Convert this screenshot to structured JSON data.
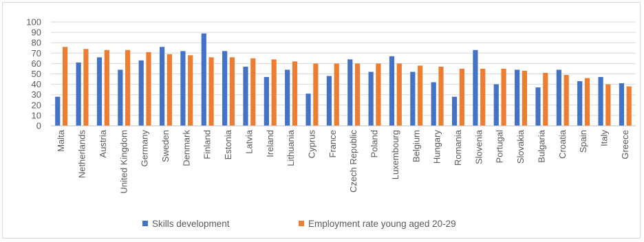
{
  "chart_data": {
    "type": "bar",
    "title": "",
    "xlabel": "",
    "ylabel": "",
    "ylim": [
      0,
      100
    ],
    "ytick_step": 10,
    "grid": true,
    "legend_position": "bottom",
    "categories": [
      "Malta",
      "Netherlands",
      "Austria",
      "United Kingdom",
      "Germany",
      "Sweden",
      "Denmark",
      "Finland",
      "Estonia",
      "Latvia",
      "Ireland",
      "Lithuania",
      "Cyprus",
      "France",
      "Czech Republic",
      "Poland",
      "Luxembourg",
      "Belgium",
      "Hungary",
      "Romania",
      "Slovenia",
      "Portugal",
      "Slovakia",
      "Bulgaria",
      "Croatia",
      "Spain",
      "Italy",
      "Greece"
    ],
    "series": [
      {
        "name": "Skills development",
        "color": "#4472c4",
        "values": [
          28,
          61,
          66,
          54,
          63,
          76,
          72,
          89,
          72,
          57,
          47,
          54,
          31,
          48,
          64,
          52,
          67,
          52,
          42,
          28,
          73,
          40,
          54,
          37,
          54,
          43,
          47,
          41
        ]
      },
      {
        "name": "Employment rate young aged 20-29",
        "color": "#ed7d31",
        "values": [
          76,
          74,
          73,
          73,
          71,
          69,
          68,
          66,
          66,
          65,
          64,
          62,
          60,
          60,
          60,
          60,
          60,
          58,
          57,
          55,
          55,
          55,
          53,
          51,
          49,
          46,
          40,
          38
        ]
      }
    ]
  }
}
